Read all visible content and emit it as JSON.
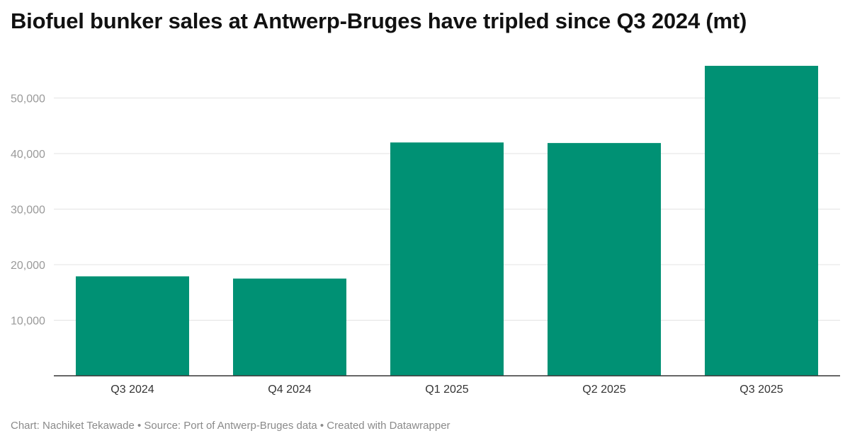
{
  "colors": {
    "bar": "#009174",
    "gridline": "#e3e3e3",
    "baseline": "#333333",
    "title": "#111111",
    "footer": "#8a8a8a"
  },
  "footer": {
    "credit": "Chart: Nachiket Tekawade • Source: Port of Antwerp-Bruges data • Created with Datawrapper"
  },
  "chart_data": {
    "type": "bar",
    "title": "Biofuel bunker sales at Antwerp-Bruges have tripled since Q3 2024 (mt)",
    "categories": [
      "Q3 2024",
      "Q4 2024",
      "Q1 2025",
      "Q2 2025",
      "Q3 2025"
    ],
    "values": [
      17900,
      17500,
      42000,
      41900,
      55800
    ],
    "yticks": [
      10000,
      20000,
      30000,
      40000,
      50000
    ],
    "ytick_labels": [
      "10,000",
      "20,000",
      "30,000",
      "40,000",
      "50,000"
    ],
    "ylim": [
      0,
      55800
    ],
    "grid": true,
    "legend": "none"
  }
}
